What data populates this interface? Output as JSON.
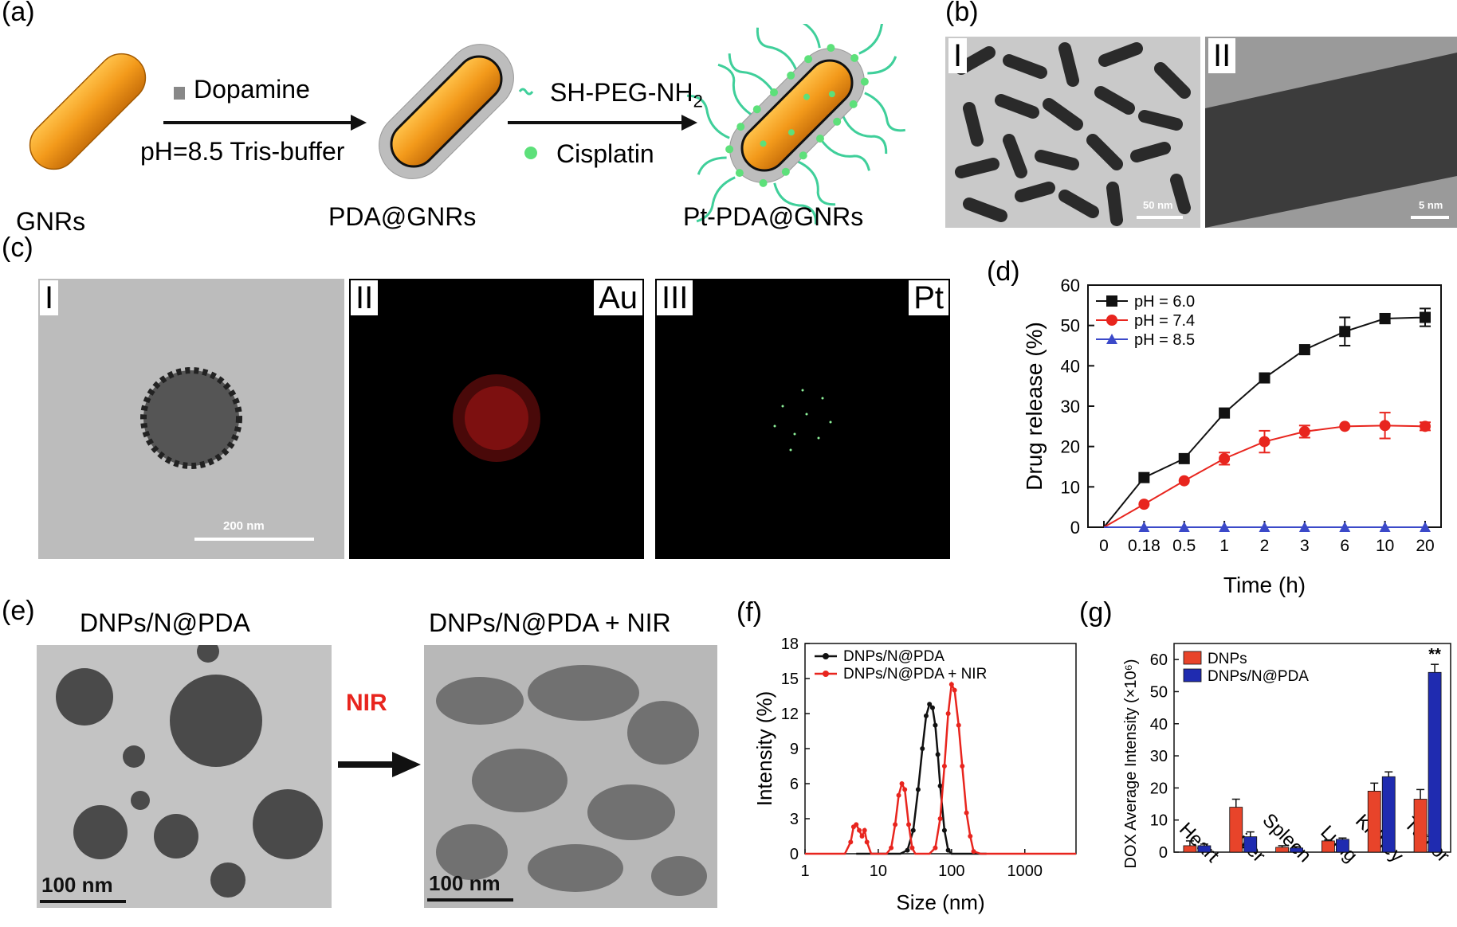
{
  "panel_labels": {
    "a": "(a)",
    "b": "(b)",
    "c": "(c)",
    "d": "(d)",
    "e": "(e)",
    "f": "(f)",
    "g": "(g)"
  },
  "panel_a": {
    "dopamine": "Dopamine",
    "buffer": "pH=8.5 Tris-buffer",
    "peg": "SH-PEG-NH",
    "peg_sub": "2",
    "cisplatin": "Cisplatin",
    "gnrs": "GNRs",
    "pda_gnrs": "PDA@GNRs",
    "pt_pda_gnrs": "Pt-PDA@GNRs",
    "colors": {
      "rod": "#f39a1b",
      "shell": "#b9b9b9",
      "peg": "#3fcf9a",
      "pt": "#5de07a"
    }
  },
  "panel_b": {
    "sub1": "I",
    "sub2": "II",
    "scale1": "50 nm",
    "scale2": "5 nm"
  },
  "panel_c": {
    "sub1": "I",
    "sub2": "II",
    "sub3": "III",
    "el_au": "Au",
    "el_pt": "Pt",
    "scale": "200 nm"
  },
  "panel_e": {
    "left_title": "DNPs/N@PDA",
    "right_title": "DNPs/N@PDA + NIR",
    "arrow_label": "NIR",
    "scale_left": "100 nm",
    "scale_right": "100 nm"
  },
  "chart_data": [
    {
      "id": "d",
      "type": "line",
      "categories": [
        "0",
        "0.18",
        "0.5",
        "1",
        "2",
        "3",
        "6",
        "10",
        "20"
      ],
      "xlabel": "Time (h)",
      "ylabel": "Drug release (%)",
      "ylim": [
        0,
        60
      ],
      "yticks": [
        0,
        10,
        20,
        30,
        40,
        50,
        60
      ],
      "legend_position": "top-left",
      "series": [
        {
          "name": "pH = 6.0",
          "color": "#111111",
          "marker": "square",
          "values": [
            0,
            12.3,
            17,
            28.3,
            37,
            44,
            48.5,
            51.7,
            52
          ],
          "errors": [
            0,
            0,
            0,
            0,
            0,
            0,
            3.5,
            1.2,
            2.2
          ]
        },
        {
          "name": "pH = 7.4",
          "color": "#e8251e",
          "marker": "circle",
          "values": [
            0,
            5.7,
            11.5,
            17,
            21.2,
            23.7,
            25,
            25.2,
            25
          ],
          "errors": [
            0,
            0,
            0,
            1.5,
            2.7,
            1.5,
            0,
            3.2,
            1
          ]
        },
        {
          "name": "pH = 8.5",
          "color": "#3b49c9",
          "marker": "triangle",
          "values": [
            0,
            0,
            0,
            0,
            0,
            0,
            0,
            0,
            0
          ],
          "errors": [
            0,
            0,
            0,
            0,
            0,
            0,
            0,
            0,
            0
          ]
        }
      ]
    },
    {
      "id": "f",
      "type": "line",
      "xscale": "log",
      "xlim": [
        1,
        5000
      ],
      "xticks": [
        1,
        10,
        100,
        1000
      ],
      "xlabel": "Size (nm)",
      "ylabel": "Intensity (%)",
      "ylim": [
        0,
        18
      ],
      "yticks": [
        0,
        3,
        6,
        9,
        12,
        15,
        18
      ],
      "legend_position": "top-left",
      "series": [
        {
          "name": "DNPs/N@PDA",
          "color": "#111111",
          "x": [
            5,
            15,
            20,
            25,
            30,
            35,
            40,
            45,
            50,
            55,
            60,
            65,
            70,
            80,
            90,
            100,
            150,
            300
          ],
          "y": [
            0,
            0,
            0,
            0.3,
            2,
            5.5,
            9,
            11.8,
            12.8,
            12.5,
            11,
            8.5,
            5.8,
            2,
            0.3,
            0,
            0,
            0
          ]
        },
        {
          "name": "DNPs/N@PDA + NIR",
          "color": "#e8251e",
          "x": [
            1,
            3.5,
            4.2,
            4.6,
            5,
            5.5,
            6,
            6.5,
            7,
            8,
            10,
            13,
            15,
            17,
            19,
            21,
            23,
            26,
            29,
            32,
            40,
            50,
            60,
            70,
            80,
            90,
            100,
            110,
            125,
            140,
            160,
            180,
            200,
            250,
            5000
          ],
          "y": [
            0,
            0,
            1,
            2.3,
            2.5,
            2,
            1.5,
            2,
            1,
            0,
            0,
            0,
            0.5,
            2.5,
            5,
            6,
            5.5,
            2.5,
            0.5,
            0,
            0,
            0,
            0.5,
            3,
            7.5,
            12,
            14.5,
            14,
            11,
            7.5,
            3.5,
            1.5,
            0.2,
            0,
            0
          ]
        }
      ]
    },
    {
      "id": "g",
      "type": "bar",
      "categories": [
        "Heart",
        "Liver",
        "Spleen",
        "Lung",
        "Kidney",
        "Tumor"
      ],
      "ylabel": "DOX Average Intensity (×10⁶)",
      "ylim": [
        0,
        65
      ],
      "yticks": [
        0,
        10,
        20,
        30,
        40,
        50,
        60
      ],
      "legend_position": "top-left",
      "annotation": "**",
      "series": [
        {
          "name": "DNPs",
          "color": "#e8442a",
          "values": [
            2,
            14,
            1.5,
            3.5,
            19,
            16.5
          ],
          "errors": [
            1.5,
            2.5,
            0.5,
            0.3,
            2.5,
            3
          ]
        },
        {
          "name": "DNPs/N@PDA",
          "color": "#1f2bb0",
          "values": [
            2,
            4.8,
            1.3,
            4,
            23.5,
            56
          ],
          "errors": [
            0.5,
            1.5,
            0.4,
            0.4,
            1.5,
            2.5
          ]
        }
      ]
    }
  ]
}
